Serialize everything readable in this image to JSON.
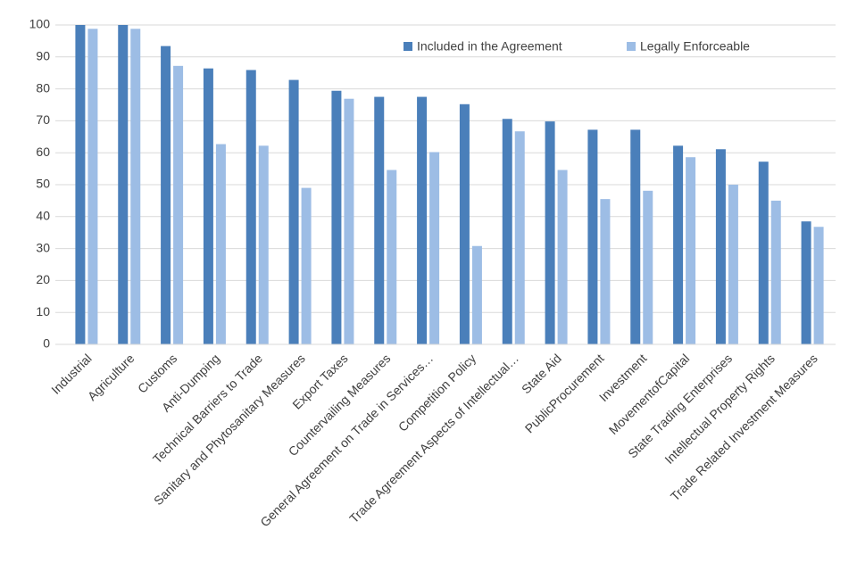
{
  "chart_data": {
    "type": "bar",
    "categories": [
      "Industrial",
      "Agriculture",
      "Customs",
      "Anti-Dumping",
      "Technical Barriers to Trade",
      "Sanitary and Phytosanitary Measures",
      "Export Taxes",
      "Countervailing Measures",
      "General Agreement on Trade in Services…",
      "Competition Policy",
      "Trade Agreement Aspects of Intellectual…",
      "State Aid",
      "PublicProcurement",
      "Investment",
      "MovementofCapital",
      "State Trading Enterprises",
      "Intellectual Property Rights",
      "Trade Related Investment Measures"
    ],
    "series": [
      {
        "name": "Included in the Agreement",
        "color": "#4a7fba",
        "values": [
          100,
          100,
          93.4,
          86.4,
          85.9,
          82.8,
          79.4,
          77.5,
          77.5,
          75.2,
          70.6,
          69.8,
          67.2,
          67.2,
          62.2,
          61.1,
          57.2,
          38.5
        ]
      },
      {
        "name": "Legally Enforceable",
        "color": "#9dbde5",
        "values": [
          98.8,
          98.8,
          87.2,
          62.7,
          62.2,
          49,
          76.9,
          54.6,
          60.2,
          30.8,
          66.7,
          54.6,
          45.5,
          48.1,
          58.6,
          50,
          45,
          36.8
        ]
      }
    ],
    "ylim": [
      0,
      100
    ],
    "yticks": [
      0,
      10,
      20,
      30,
      40,
      50,
      60,
      70,
      80,
      90,
      100
    ],
    "grid": true,
    "legend": "top"
  }
}
